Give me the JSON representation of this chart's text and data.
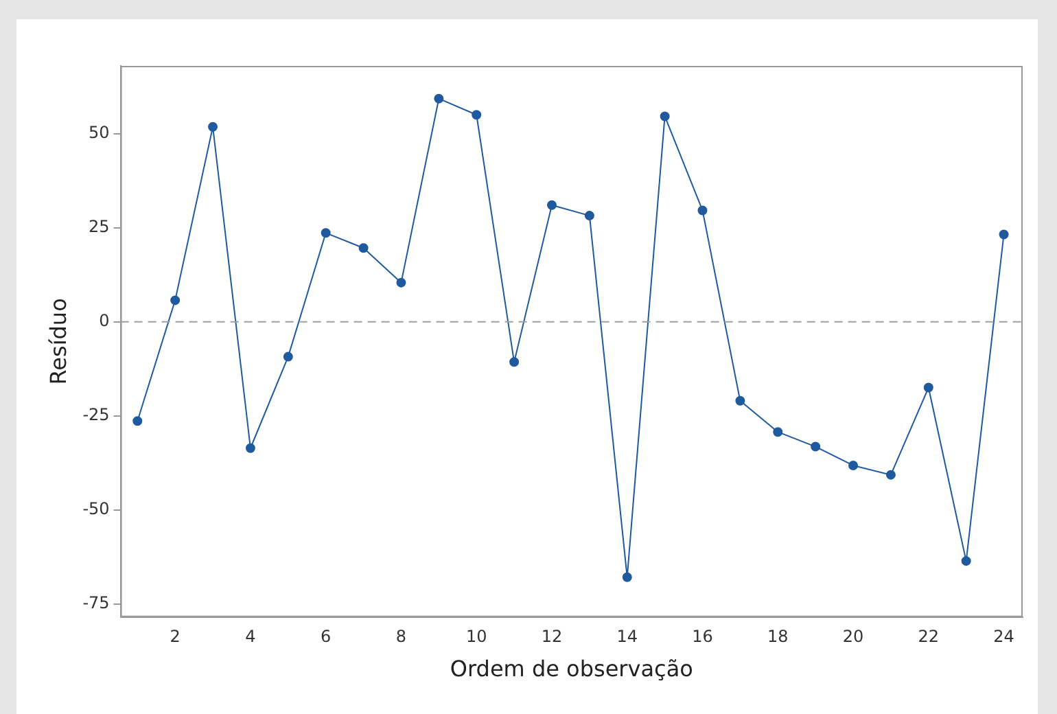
{
  "chart_data": {
    "type": "line",
    "xlabel": "Ordem de observação",
    "ylabel": "Resíduo",
    "x": [
      1,
      2,
      3,
      4,
      5,
      6,
      7,
      8,
      9,
      10,
      11,
      12,
      13,
      14,
      15,
      16,
      17,
      18,
      19,
      20,
      21,
      22,
      23,
      24
    ],
    "series": [
      {
        "color": "#1f5a9e",
        "values": [
          -26.4,
          5.7,
          51.8,
          -33.6,
          -9.3,
          23.6,
          19.6,
          10.4,
          59.3,
          55,
          -10.7,
          31,
          28.2,
          -67.9,
          54.6,
          29.6,
          -21,
          -29.3,
          -33.2,
          -38.2,
          -40.7,
          -17.5,
          -63.6,
          23.2
        ]
      }
    ],
    "xlim": [
      0.55,
      24.5
    ],
    "xticks": [
      2,
      4,
      6,
      8,
      10,
      12,
      14,
      16,
      18,
      20,
      22,
      24
    ],
    "ylim": [
      -78.5,
      68
    ],
    "yticks": [
      -75,
      -50,
      -25,
      0,
      25,
      50
    ],
    "ref_lines": [
      {
        "axis": "y",
        "value": 0,
        "color": "#a0a0a0",
        "line_style": "dashed"
      }
    ],
    "grid": false,
    "legend": false,
    "marker": "circle",
    "line_style": "solid"
  }
}
